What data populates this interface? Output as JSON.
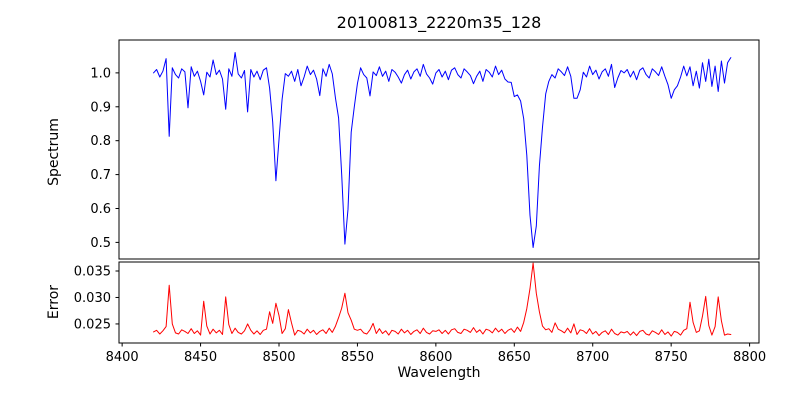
{
  "figure_title": "20100813_2220m35_128",
  "colors": {
    "spectrum_line": "#0000ff",
    "error_line": "#ff0000",
    "axis": "#000000",
    "background": "#ffffff"
  },
  "chart_data": [
    {
      "type": "line",
      "title": "20100813_2220m35_128",
      "ylabel": "Spectrum",
      "legend": "none",
      "grid": false,
      "line_color": "#0000ff",
      "xlim": [
        8398,
        8806
      ],
      "ylim": [
        0.451,
        1.097
      ],
      "yticks": [
        0.5,
        0.6,
        0.7,
        0.8,
        0.9,
        1.0
      ],
      "ytick_labels": [
        "0.5",
        "0.6",
        "0.7",
        "0.8",
        "0.9",
        "1.0"
      ],
      "xticks": [],
      "xtick_labels": [],
      "x_start": 8420,
      "x_step": 2,
      "absorption_lines": [
        {
          "wavelength": 8430,
          "min_flux": 0.81
        },
        {
          "wavelength": 8498,
          "min_flux": 0.68
        },
        {
          "wavelength": 8542,
          "min_flux": 0.5
        },
        {
          "wavelength": 8662,
          "min_flux": 0.49
        }
      ],
      "values": [
        1.0,
        1.01,
        0.988,
        1.005,
        1.042,
        0.813,
        1.015,
        0.995,
        0.985,
        1.012,
        1.003,
        0.897,
        1.018,
        0.99,
        1.005,
        0.975,
        0.935,
        1.002,
        0.988,
        1.038,
        0.995,
        1.008,
        0.982,
        0.893,
        1.012,
        0.99,
        1.06,
        0.997,
        0.985,
        1.007,
        0.885,
        1.01,
        0.988,
        1.005,
        0.98,
        1.008,
        1.015,
        0.955,
        0.855,
        0.682,
        0.803,
        0.922,
        0.998,
        0.99,
        1.005,
        0.975,
        1.01,
        0.962,
        0.988,
        1.02,
        0.995,
        1.008,
        0.982,
        0.933,
        1.012,
        0.99,
        1.025,
        0.997,
        0.925,
        0.867,
        0.7,
        0.495,
        0.598,
        0.825,
        0.9,
        0.968,
        1.015,
        0.995,
        0.985,
        0.932,
        1.003,
        0.992,
        1.018,
        0.99,
        1.005,
        0.975,
        1.01,
        1.002,
        0.988,
        0.97,
        0.995,
        1.008,
        0.982,
        1.003,
        1.012,
        0.99,
        1.025,
        0.997,
        0.985,
        0.967,
        1.0,
        1.01,
        0.988,
        1.005,
        0.98,
        1.008,
        1.015,
        0.995,
        0.985,
        1.012,
        1.003,
        0.992,
        0.968,
        0.99,
        1.005,
        0.975,
        1.01,
        1.002,
        0.988,
        1.02,
        0.995,
        1.008,
        0.982,
        0.973,
        0.972,
        0.93,
        0.935,
        0.917,
        0.865,
        0.757,
        0.58,
        0.485,
        0.548,
        0.725,
        0.84,
        0.938,
        0.975,
        0.995,
        0.985,
        1.012,
        1.003,
        0.992,
        1.018,
        0.99,
        0.925,
        0.925,
        0.95,
        1.002,
        0.988,
        1.02,
        0.995,
        1.008,
        0.982,
        1.003,
        1.012,
        0.99,
        1.025,
        0.957,
        0.985,
        1.007,
        1.0,
        1.01,
        0.988,
        1.005,
        0.98,
        1.008,
        1.015,
        0.995,
        0.985,
        1.012,
        1.003,
        0.992,
        1.018,
        0.99,
        0.965,
        0.925,
        0.95,
        0.962,
        0.988,
        1.02,
        0.991,
        1.018,
        0.962,
        1.005,
        0.955,
        1.03,
        0.975,
        1.04,
        0.96,
        1.02,
        0.945,
        1.035,
        0.97,
        1.03,
        1.045
      ]
    },
    {
      "type": "line",
      "ylabel": "Error",
      "xlabel": "Wavelength",
      "legend": "none",
      "grid": false,
      "line_color": "#ff0000",
      "xlim": [
        8398,
        8806
      ],
      "ylim": [
        0.0214,
        0.0367
      ],
      "yticks": [
        0.025,
        0.03,
        0.035
      ],
      "ytick_labels": [
        "0.025",
        "0.030",
        "0.035"
      ],
      "xticks": [
        8400,
        8450,
        8500,
        8550,
        8600,
        8650,
        8700,
        8750,
        8800
      ],
      "xtick_labels": [
        "8400",
        "8450",
        "8500",
        "8550",
        "8600",
        "8650",
        "8700",
        "8750",
        "8800"
      ],
      "x_start": 8420,
      "x_step": 2,
      "error_peaks": [
        {
          "wavelength": 8430,
          "max_error": 0.0323
        },
        {
          "wavelength": 8452,
          "max_error": 0.0293
        },
        {
          "wavelength": 8466,
          "max_error": 0.0301
        },
        {
          "wavelength": 8498,
          "max_error": 0.0289
        },
        {
          "wavelength": 8542,
          "max_error": 0.0308
        },
        {
          "wavelength": 8662,
          "max_error": 0.0365
        },
        {
          "wavelength": 8762,
          "max_error": 0.0291
        },
        {
          "wavelength": 8772,
          "max_error": 0.0302
        },
        {
          "wavelength": 8780,
          "max_error": 0.0301
        }
      ],
      "values": [
        0.0235,
        0.0238,
        0.0231,
        0.0237,
        0.0245,
        0.0323,
        0.025,
        0.0233,
        0.0231,
        0.0239,
        0.0236,
        0.0232,
        0.0241,
        0.0232,
        0.0237,
        0.0229,
        0.0293,
        0.0246,
        0.0231,
        0.024,
        0.0233,
        0.0238,
        0.023,
        0.0301,
        0.0249,
        0.0232,
        0.0242,
        0.0234,
        0.0231,
        0.0237,
        0.025,
        0.0238,
        0.0231,
        0.0237,
        0.023,
        0.0238,
        0.024,
        0.0273,
        0.0251,
        0.0289,
        0.0266,
        0.0232,
        0.0241,
        0.0277,
        0.0252,
        0.0229,
        0.0238,
        0.0236,
        0.0231,
        0.024,
        0.0233,
        0.0238,
        0.023,
        0.0236,
        0.0239,
        0.0232,
        0.0242,
        0.0234,
        0.0246,
        0.0262,
        0.028,
        0.0308,
        0.0271,
        0.0257,
        0.024,
        0.0238,
        0.024,
        0.0233,
        0.0231,
        0.0239,
        0.0251,
        0.0232,
        0.0241,
        0.0232,
        0.0237,
        0.0229,
        0.0238,
        0.0236,
        0.0231,
        0.024,
        0.0233,
        0.0238,
        0.023,
        0.0236,
        0.0239,
        0.0232,
        0.0242,
        0.0234,
        0.0231,
        0.0237,
        0.0236,
        0.0239,
        0.0232,
        0.0238,
        0.0231,
        0.0239,
        0.0241,
        0.0234,
        0.0232,
        0.024,
        0.0238,
        0.0234,
        0.0243,
        0.0234,
        0.0239,
        0.0231,
        0.024,
        0.0238,
        0.0233,
        0.0242,
        0.0235,
        0.024,
        0.0232,
        0.0238,
        0.0241,
        0.0234,
        0.0244,
        0.0236,
        0.0253,
        0.0279,
        0.0317,
        0.0365,
        0.0308,
        0.0273,
        0.0246,
        0.0239,
        0.0241,
        0.0234,
        0.0252,
        0.024,
        0.0237,
        0.0233,
        0.0242,
        0.0233,
        0.025,
        0.023,
        0.0239,
        0.0237,
        0.0232,
        0.0241,
        0.0231,
        0.0236,
        0.0228,
        0.0234,
        0.0237,
        0.023,
        0.024,
        0.0232,
        0.0229,
        0.0235,
        0.0233,
        0.0236,
        0.0229,
        0.0235,
        0.0228,
        0.0236,
        0.0238,
        0.0231,
        0.0229,
        0.0237,
        0.0234,
        0.023,
        0.0239,
        0.023,
        0.0235,
        0.0227,
        0.0236,
        0.0234,
        0.0229,
        0.0238,
        0.0241,
        0.0291,
        0.0253,
        0.0234,
        0.0237,
        0.0265,
        0.0302,
        0.0247,
        0.0229,
        0.0245,
        0.0301,
        0.0256,
        0.0229,
        0.0231,
        0.023
      ]
    }
  ]
}
